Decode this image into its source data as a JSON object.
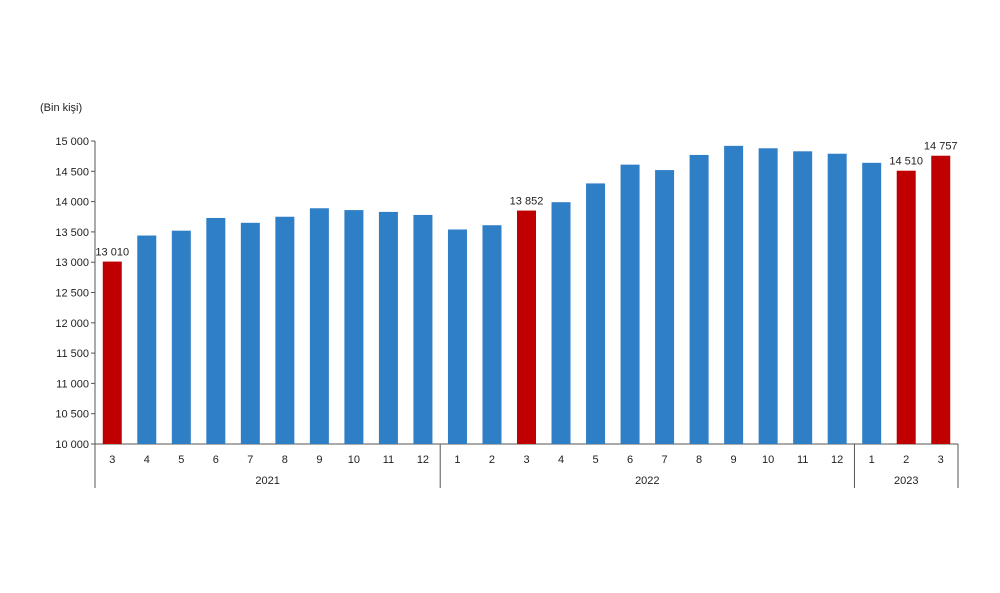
{
  "chart_data": {
    "type": "bar",
    "unit_label": "(Bin kişi)",
    "title": "",
    "xlabel": "",
    "ylabel": "",
    "ylim": [
      10000,
      15000
    ],
    "yticks": [
      "10 000",
      "10 500",
      "11 000",
      "11 500",
      "12 000",
      "12 500",
      "13 000",
      "13 500",
      "14 000",
      "14 500",
      "15 000"
    ],
    "grid": false,
    "groups": [
      {
        "label": "2021",
        "size": 10
      },
      {
        "label": "2022",
        "size": 12
      },
      {
        "label": "2023",
        "size": 3
      }
    ],
    "categories": [
      "3",
      "4",
      "5",
      "6",
      "7",
      "8",
      "9",
      "10",
      "11",
      "12",
      "1",
      "2",
      "3",
      "4",
      "5",
      "6",
      "7",
      "8",
      "9",
      "10",
      "11",
      "12",
      "1",
      "2",
      "3"
    ],
    "values": [
      13010,
      13440,
      13520,
      13730,
      13650,
      13750,
      13890,
      13860,
      13830,
      13780,
      13540,
      13610,
      13852,
      13990,
      14300,
      14610,
      14520,
      14770,
      14920,
      14880,
      14830,
      14790,
      14640,
      14510,
      14757
    ],
    "colors": [
      "#c00000",
      "#2e7fc6",
      "#2e7fc6",
      "#2e7fc6",
      "#2e7fc6",
      "#2e7fc6",
      "#2e7fc6",
      "#2e7fc6",
      "#2e7fc6",
      "#2e7fc6",
      "#2e7fc6",
      "#2e7fc6",
      "#c00000",
      "#2e7fc6",
      "#2e7fc6",
      "#2e7fc6",
      "#2e7fc6",
      "#2e7fc6",
      "#2e7fc6",
      "#2e7fc6",
      "#2e7fc6",
      "#2e7fc6",
      "#2e7fc6",
      "#c00000",
      "#c00000"
    ],
    "data_labels": [
      {
        "index": 0,
        "text": "13 010"
      },
      {
        "index": 12,
        "text": "13 852"
      },
      {
        "index": 23,
        "text": "14 510"
      },
      {
        "index": 24,
        "text": "14 757"
      }
    ]
  }
}
